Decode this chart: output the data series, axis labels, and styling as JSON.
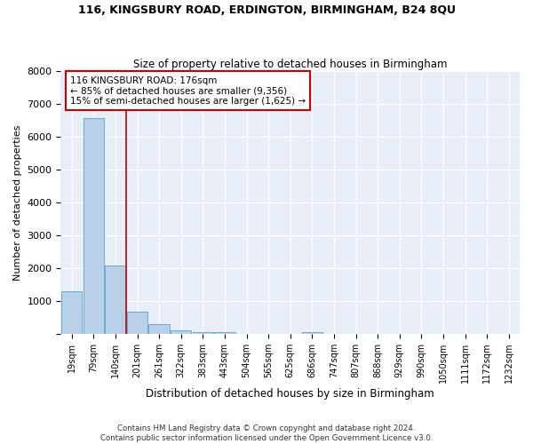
{
  "title1": "116, KINGSBURY ROAD, ERDINGTON, BIRMINGHAM, B24 8QU",
  "title2": "Size of property relative to detached houses in Birmingham",
  "xlabel": "Distribution of detached houses by size in Birmingham",
  "ylabel": "Number of detached properties",
  "categories": [
    "19sqm",
    "79sqm",
    "140sqm",
    "201sqm",
    "261sqm",
    "322sqm",
    "383sqm",
    "443sqm",
    "504sqm",
    "565sqm",
    "625sqm",
    "686sqm",
    "747sqm",
    "807sqm",
    "868sqm",
    "929sqm",
    "990sqm",
    "1050sqm",
    "1111sqm",
    "1172sqm",
    "1232sqm"
  ],
  "values": [
    1300,
    6550,
    2080,
    680,
    290,
    120,
    60,
    70,
    0,
    0,
    0,
    70,
    0,
    0,
    0,
    0,
    0,
    0,
    0,
    0,
    0
  ],
  "bar_color": "#b8d0e8",
  "bar_edge_color": "#6aaad4",
  "vline_color": "#cc0000",
  "annotation_text": "116 KINGSBURY ROAD: 176sqm\n← 85% of detached houses are smaller (9,356)\n15% of semi-detached houses are larger (1,625) →",
  "annotation_box_color": "white",
  "annotation_box_edge_color": "#cc0000",
  "ylim": [
    0,
    8000
  ],
  "yticks": [
    0,
    1000,
    2000,
    3000,
    4000,
    5000,
    6000,
    7000,
    8000
  ],
  "background_color": "#e8eef8",
  "grid_color": "white",
  "footer1": "Contains HM Land Registry data © Crown copyright and database right 2024.",
  "footer2": "Contains public sector information licensed under the Open Government Licence v3.0."
}
